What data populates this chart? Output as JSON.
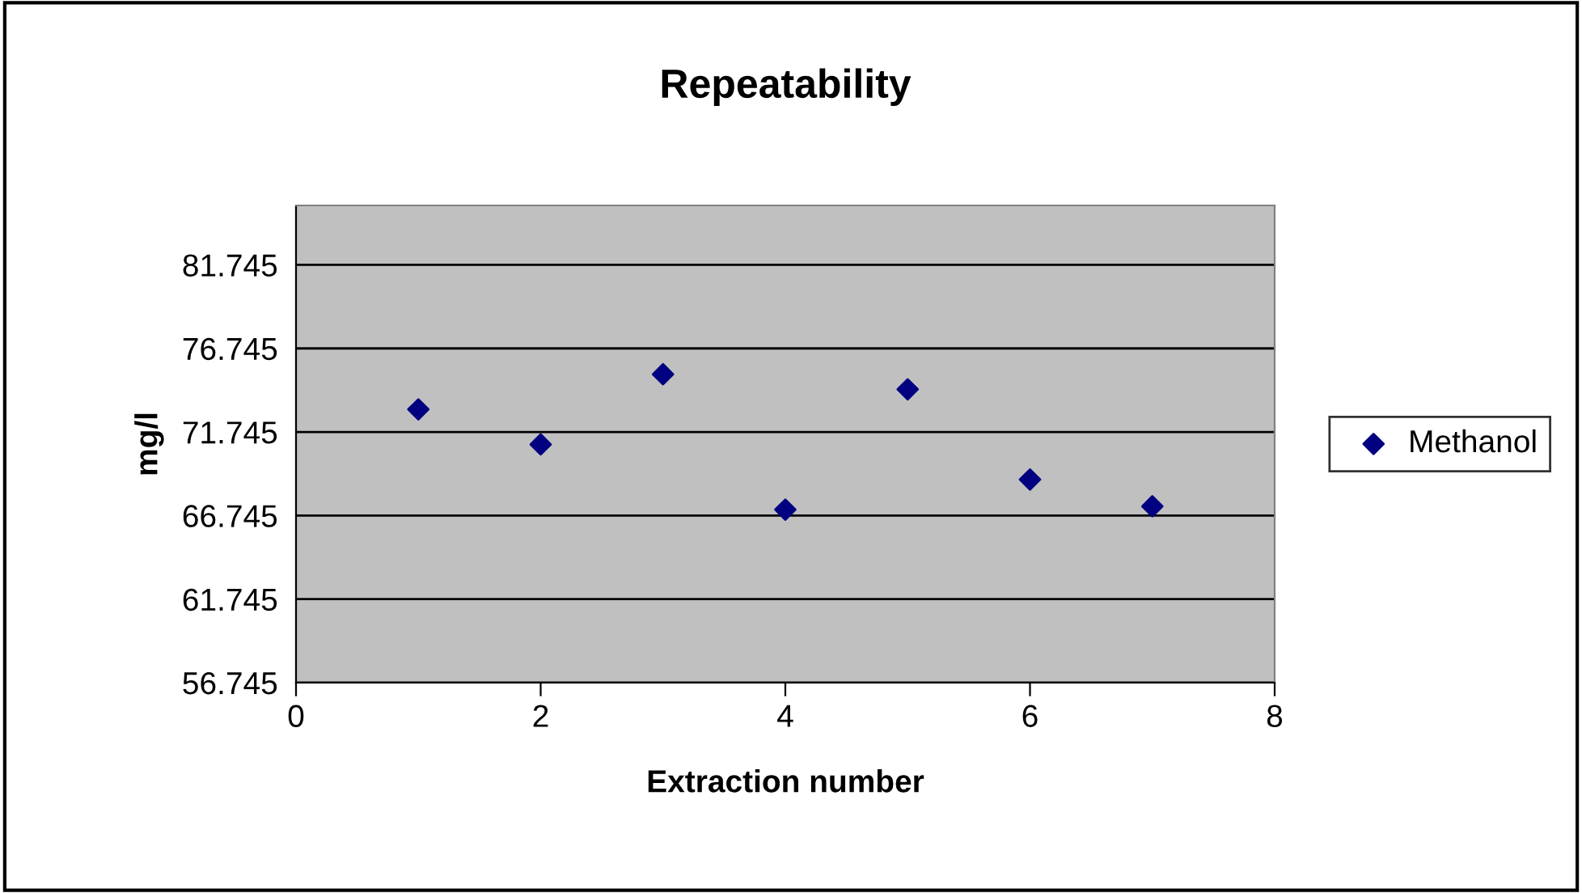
{
  "chart_data": {
    "type": "scatter",
    "title": "Repeatability",
    "xlabel": "Extraction number",
    "ylabel": "mg/l",
    "x": [
      1,
      2,
      3,
      4,
      5,
      6,
      7
    ],
    "series": [
      {
        "name": "Methanol",
        "color": "#000080",
        "values": [
          73.1,
          71.0,
          75.2,
          67.1,
          74.3,
          68.9,
          67.3
        ]
      }
    ],
    "xlim": [
      0,
      8
    ],
    "xticks": [
      0,
      2,
      4,
      6,
      8
    ],
    "ylim": [
      56.745,
      85.3
    ],
    "yticks": [
      56.745,
      61.745,
      66.745,
      71.745,
      76.745,
      81.745
    ],
    "grid": "y",
    "legend": "right",
    "marker": "diamond"
  }
}
